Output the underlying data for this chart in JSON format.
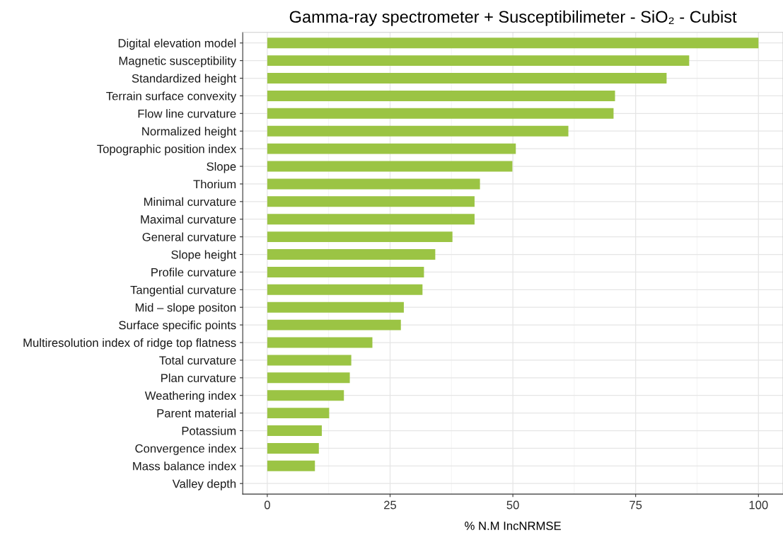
{
  "chart_data": {
    "type": "bar",
    "orientation": "horizontal",
    "title": "Gamma-ray spectrometer + Susceptibilimeter - SiO₂ - Cubist",
    "xlabel": "% N.M IncNRMSE",
    "categories": [
      "Digital elevation model",
      "Magnetic susceptibility",
      "Standardized height",
      "Terrain surface convexity",
      "Flow line curvature",
      "Normalized height",
      "Topographic position index",
      "Slope",
      "Thorium",
      "Minimal curvature",
      "Maximal curvature",
      "General curvature",
      "Slope height",
      "Profile curvature",
      "Tangential curvature",
      "Mid – slope positon",
      "Surface specific points",
      "Multiresolution index of ridge top flatness",
      "Total curvature",
      "Plan curvature",
      "Weathering index",
      "Parent material",
      "Potassium",
      "Convergence index",
      "Mass balance index",
      "Valley depth"
    ],
    "values": [
      100,
      85.9,
      81.3,
      70.8,
      70.5,
      61.3,
      50.6,
      49.9,
      43.3,
      42.2,
      42.2,
      37.7,
      34.2,
      31.9,
      31.6,
      27.8,
      27.2,
      21.4,
      17.1,
      16.8,
      15.6,
      12.6,
      11.1,
      10.5,
      9.7,
      0
    ],
    "color": "#9bc444",
    "xlim": [
      -5,
      105
    ],
    "xticks": [
      0,
      25,
      50,
      75,
      100
    ],
    "grid": true
  }
}
